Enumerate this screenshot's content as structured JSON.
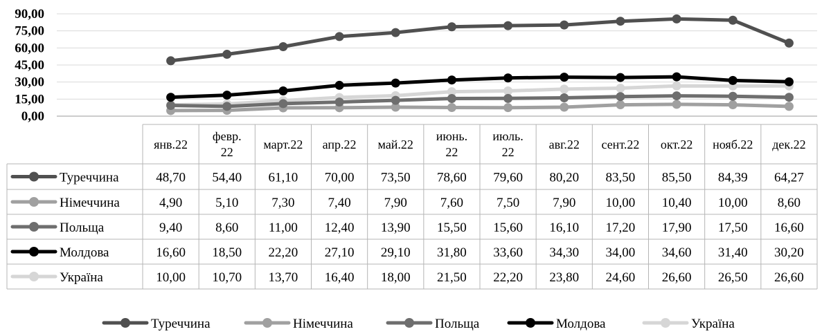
{
  "chart_data": {
    "type": "line",
    "categories": [
      "янв.22",
      "февр. 22",
      "март.22",
      "апр.22",
      "май.22",
      "июнь. 22",
      "июль. 22",
      "авг.22",
      "сент.22",
      "окт.22",
      "нояб.22",
      "дек.22"
    ],
    "y_ticks": [
      "0,00",
      "15,00",
      "30,00",
      "45,00",
      "60,00",
      "75,00",
      "90,00"
    ],
    "ylim": [
      0,
      90
    ],
    "grid": true,
    "legend_position": "bottom",
    "data_table": true,
    "series": [
      {
        "name": "Туреччина",
        "color": "#505050",
        "values": [
          48.7,
          54.4,
          61.1,
          70.0,
          73.5,
          78.6,
          79.6,
          80.2,
          83.5,
          85.5,
          84.39,
          64.27
        ],
        "labels": [
          "48,70",
          "54,40",
          "61,10",
          "70,00",
          "73,50",
          "78,60",
          "79,60",
          "80,20",
          "83,50",
          "85,50",
          "84,39",
          "64,27"
        ]
      },
      {
        "name": "Німеччина",
        "color": "#a0a0a0",
        "values": [
          4.9,
          5.1,
          7.3,
          7.4,
          7.9,
          7.6,
          7.5,
          7.9,
          10.0,
          10.4,
          10.0,
          8.6
        ],
        "labels": [
          "4,90",
          "5,10",
          "7,30",
          "7,40",
          "7,90",
          "7,60",
          "7,50",
          "7,90",
          "10,00",
          "10,40",
          "10,00",
          "8,60"
        ]
      },
      {
        "name": "Польща",
        "color": "#6e6e6e",
        "values": [
          9.4,
          8.6,
          11.0,
          12.4,
          13.9,
          15.5,
          15.6,
          16.1,
          17.2,
          17.9,
          17.5,
          16.6
        ],
        "labels": [
          "9,40",
          "8,60",
          "11,00",
          "12,40",
          "13,90",
          "15,50",
          "15,60",
          "16,10",
          "17,20",
          "17,90",
          "17,50",
          "16,60"
        ]
      },
      {
        "name": "Молдова",
        "color": "#000000",
        "values": [
          16.6,
          18.5,
          22.2,
          27.1,
          29.1,
          31.8,
          33.6,
          34.3,
          34.0,
          34.6,
          31.4,
          30.2
        ],
        "labels": [
          "16,60",
          "18,50",
          "22,20",
          "27,10",
          "29,10",
          "31,80",
          "33,60",
          "34,30",
          "34,00",
          "34,60",
          "31,40",
          "30,20"
        ]
      },
      {
        "name": "Україна",
        "color": "#d6d6d6",
        "values": [
          10.0,
          10.7,
          13.7,
          16.4,
          18.0,
          21.5,
          22.2,
          23.8,
          24.6,
          26.6,
          26.5,
          26.6
        ],
        "labels": [
          "10,00",
          "10,70",
          "13,70",
          "16,40",
          "18,00",
          "21,50",
          "22,20",
          "23,80",
          "24,60",
          "26,60",
          "26,50",
          "26,60"
        ]
      }
    ]
  }
}
